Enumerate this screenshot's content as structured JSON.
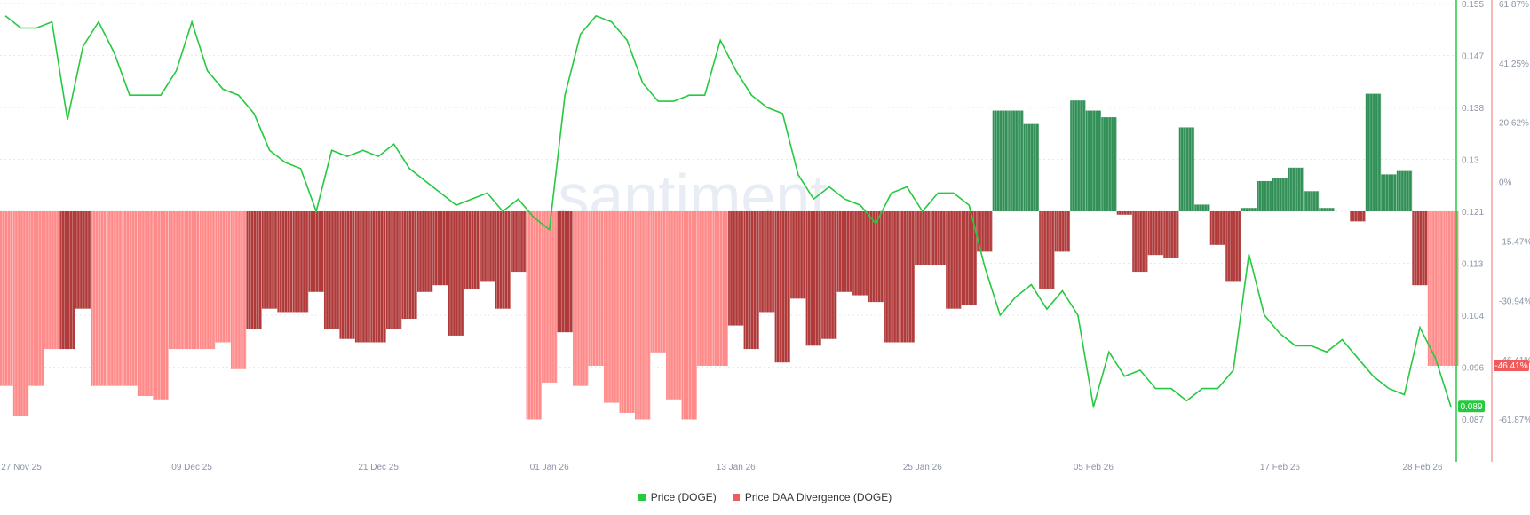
{
  "watermark": ".santiment.",
  "colors": {
    "price": "#26c940",
    "neg_light": "#ff8a8a",
    "neg_dark": "#b03a3a",
    "pos": "#2f8f55",
    "right_axis_line": "#f3a2a2",
    "price_badge": "#26c940",
    "div_badge": "#f05a5a"
  },
  "legend": [
    {
      "label": "Price (DOGE)",
      "color": "#26c940"
    },
    {
      "label": "Price DAA Divergence (DOGE)",
      "color": "#f05a5a"
    }
  ],
  "chart_data": {
    "type": "bar+line",
    "x_tick_labels": [
      "27 Nov 25",
      "09 Dec 25",
      "21 Dec 25",
      "01 Jan 26",
      "13 Jan 26",
      "25 Jan 26",
      "05 Feb 26",
      "17 Feb 26",
      "28 Feb 26"
    ],
    "x_tick_days": [
      0,
      12,
      24,
      35,
      47,
      59,
      70,
      82,
      93
    ],
    "price_axis_labels": [
      "0.155",
      "0.147",
      "0.138",
      "0.13",
      "0.121",
      "0.113",
      "0.104",
      "0.096",
      "0.087"
    ],
    "price_ylim": [
      0.087,
      0.155
    ],
    "divergence_axis_labels": [
      "61.87%",
      "41.25%",
      "20.62%",
      "0%",
      "-15.47%",
      "-30.94%",
      "-46.41%",
      "-61.87%"
    ],
    "divergence_ylim": [
      -61.87,
      61.87
    ],
    "last_price_label": "0.089",
    "last_divergence_label": "-46.41%",
    "series": [
      {
        "name": "Price (DOGE)",
        "days": [
          0,
          1,
          2,
          3,
          4,
          5,
          6,
          7,
          8,
          9,
          10,
          11,
          12,
          13,
          14,
          15,
          16,
          17,
          18,
          19,
          20,
          21,
          22,
          23,
          24,
          25,
          26,
          27,
          28,
          29,
          30,
          31,
          32,
          33,
          34,
          35,
          36,
          37,
          38,
          39,
          40,
          41,
          42,
          43,
          44,
          45,
          46,
          47,
          48,
          49,
          50,
          51,
          52,
          53,
          54,
          55,
          56,
          57,
          58,
          59,
          60,
          61,
          62,
          63,
          64,
          65,
          66,
          67,
          68,
          69,
          70,
          71,
          72,
          73,
          74,
          75,
          76,
          77,
          78,
          79,
          80,
          81,
          82,
          83,
          84,
          85,
          86,
          87,
          88,
          89,
          90,
          91,
          92,
          93
        ],
        "values": [
          0.153,
          0.151,
          0.151,
          0.152,
          0.136,
          0.148,
          0.152,
          0.147,
          0.14,
          0.14,
          0.14,
          0.144,
          0.152,
          0.144,
          0.141,
          0.14,
          0.137,
          0.131,
          0.129,
          0.128,
          0.121,
          0.131,
          0.13,
          0.131,
          0.13,
          0.132,
          0.128,
          0.126,
          0.124,
          0.122,
          0.123,
          0.124,
          0.121,
          0.123,
          0.12,
          0.118,
          0.14,
          0.15,
          0.153,
          0.152,
          0.149,
          0.142,
          0.139,
          0.139,
          0.14,
          0.14,
          0.149,
          0.144,
          0.14,
          0.138,
          0.137,
          0.127,
          0.123,
          0.125,
          0.123,
          0.122,
          0.119,
          0.124,
          0.125,
          0.121,
          0.124,
          0.124,
          0.122,
          0.112,
          0.104,
          0.107,
          0.109,
          0.105,
          0.108,
          0.104,
          0.089,
          0.098,
          0.094,
          0.095,
          0.092,
          0.092,
          0.09,
          0.092,
          0.092,
          0.095,
          0.114,
          0.104,
          0.101,
          0.099,
          0.099,
          0.098,
          0.1,
          0.097,
          0.094,
          0.092,
          0.091,
          0.102,
          0.097,
          0.089
        ]
      },
      {
        "name": "Price DAA Divergence (DOGE)",
        "days": [
          0,
          1,
          2,
          3,
          4,
          5,
          6,
          7,
          8,
          9,
          10,
          11,
          12,
          13,
          14,
          15,
          16,
          17,
          18,
          19,
          20,
          21,
          22,
          23,
          24,
          25,
          26,
          27,
          28,
          29,
          30,
          31,
          32,
          33,
          34,
          35,
          36,
          37,
          38,
          39,
          40,
          41,
          42,
          43,
          44,
          45,
          46,
          47,
          48,
          49,
          50,
          51,
          52,
          53,
          54,
          55,
          56,
          57,
          58,
          59,
          60,
          61,
          62,
          63,
          64,
          65,
          66,
          67,
          68,
          69,
          70,
          71,
          72,
          73,
          74,
          75,
          76,
          77,
          78,
          79,
          80,
          81,
          82,
          83,
          84,
          85,
          86,
          87,
          88,
          89,
          90,
          91,
          92,
          93
        ],
        "values": [
          -52,
          -61,
          -52,
          -41,
          -41,
          -29,
          -52,
          -52,
          -52,
          -55,
          -56,
          -41,
          -41,
          -41,
          -39,
          -47,
          -35,
          -29,
          -30,
          -30,
          -24,
          -35,
          -38,
          -39,
          -39,
          -35,
          -32,
          -24,
          -22,
          -37,
          -23,
          -21,
          -29,
          -18,
          -62,
          -51,
          -36,
          -52,
          -46,
          -57,
          -60,
          -62,
          -42,
          -56,
          -62,
          -46,
          -46,
          -34,
          -41,
          -30,
          -45,
          -26,
          -40,
          -38,
          -24,
          -25,
          -27,
          -39,
          -39,
          -16,
          -16,
          -29,
          -28,
          -12,
          30,
          30,
          26,
          -23,
          -12,
          33,
          30,
          28,
          -1,
          -18,
          -13,
          -14,
          25,
          2,
          -10,
          -21,
          1,
          9,
          10,
          13,
          6,
          1,
          0,
          -3,
          35,
          11,
          12,
          -22,
          -46,
          -46
        ],
        "dark": [
          false,
          false,
          false,
          false,
          true,
          true,
          false,
          false,
          false,
          false,
          false,
          false,
          false,
          false,
          false,
          false,
          true,
          true,
          true,
          true,
          true,
          true,
          true,
          true,
          true,
          true,
          true,
          true,
          true,
          true,
          true,
          true,
          true,
          true,
          false,
          false,
          true,
          false,
          false,
          false,
          false,
          false,
          false,
          false,
          false,
          false,
          false,
          true,
          true,
          true,
          true,
          true,
          true,
          true,
          true,
          true,
          true,
          true,
          true,
          true,
          true,
          true,
          true,
          true,
          false,
          false,
          false,
          true,
          true,
          false,
          true,
          true,
          true,
          true,
          true,
          true,
          false,
          true,
          true,
          true,
          true,
          true,
          true,
          true,
          true,
          true,
          true,
          true,
          false,
          true,
          true,
          true,
          false,
          false
        ]
      }
    ]
  }
}
